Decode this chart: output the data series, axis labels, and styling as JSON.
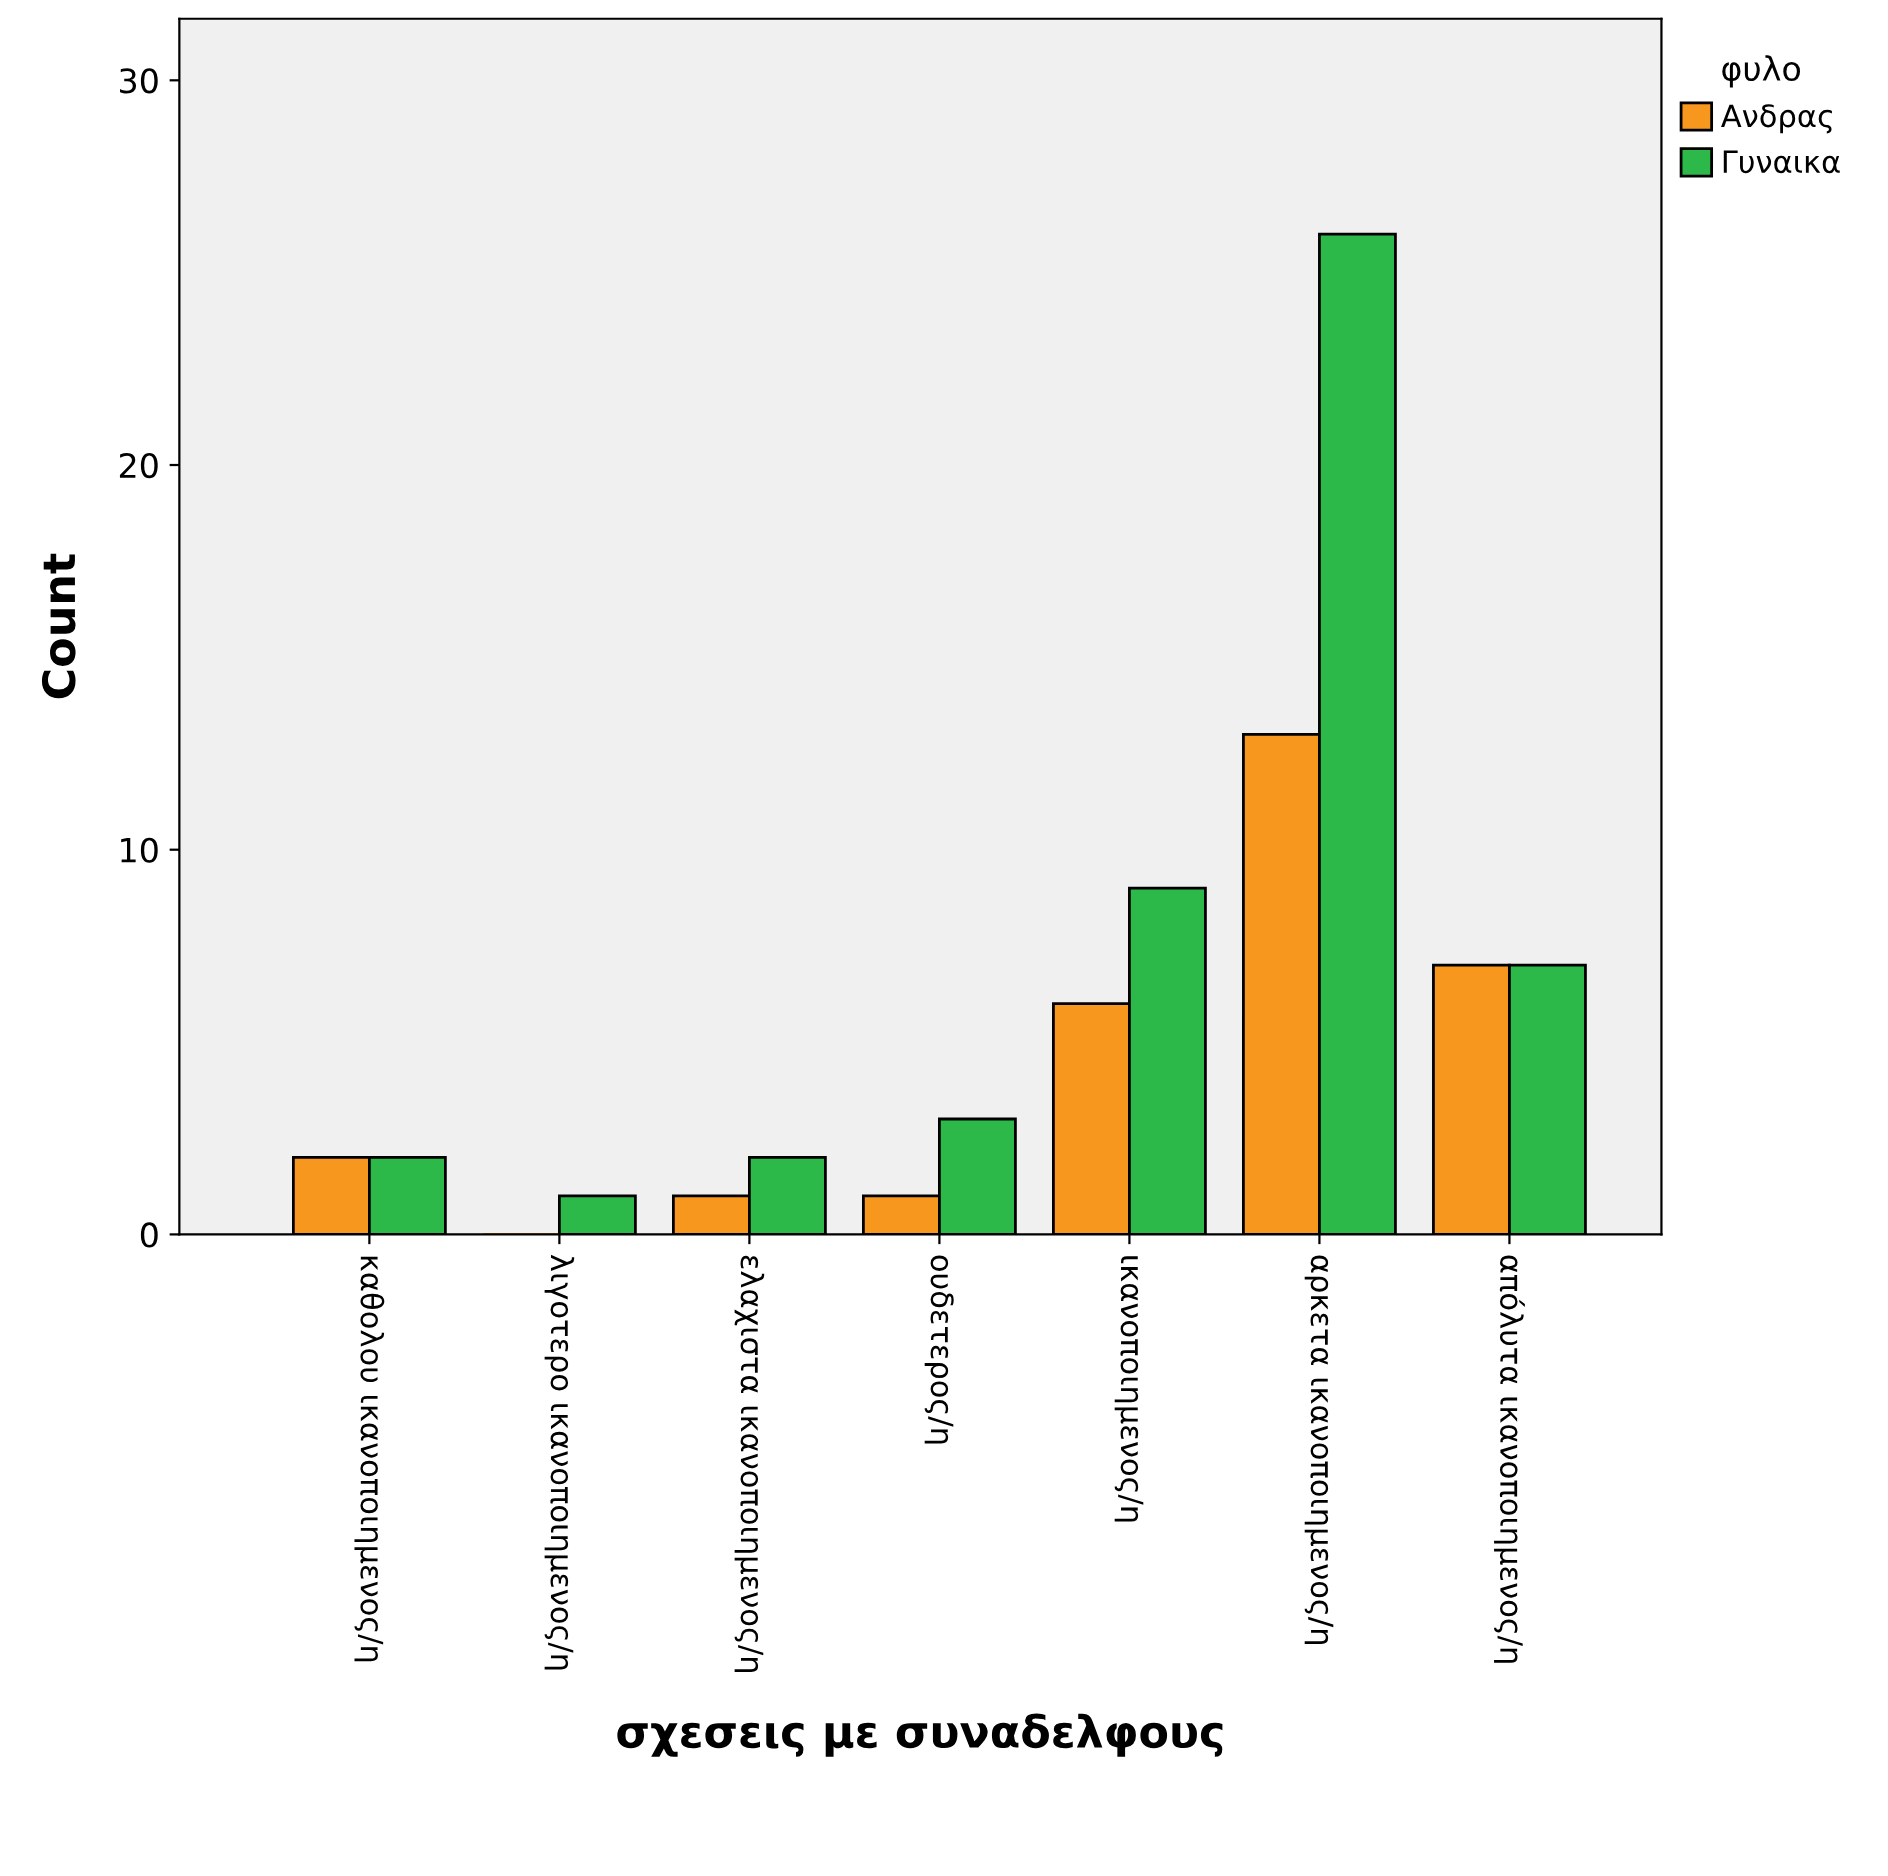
{
  "chart_data": {
    "type": "bar",
    "xlabel": "σχεσεις με συναδελφους",
    "ylabel": "Count",
    "legend_title": "φυλο",
    "categories": [
      "καθολου ικανοποιημενος/η",
      "λιγοτερο ικανοποιημενος/η",
      "ελαχιστα ικανοποιημενος/η",
      "ουδετερος/η",
      "ικανοποιημενος/η",
      "αρκετα ικανοποιημενος/η",
      "απόλυτα ικανοποιημενος/η"
    ],
    "series": [
      {
        "name": "Ανδρας",
        "color": "#f7971d",
        "values": [
          2,
          0,
          1,
          1,
          6,
          13,
          7
        ]
      },
      {
        "name": "Γυναικα",
        "color": "#2db84a",
        "values": [
          2,
          1,
          2,
          3,
          9,
          26,
          7
        ]
      }
    ],
    "ylim": [
      0,
      31.6
    ],
    "yticks": [
      0,
      10,
      20,
      30
    ],
    "grid": false,
    "legend": "right"
  }
}
